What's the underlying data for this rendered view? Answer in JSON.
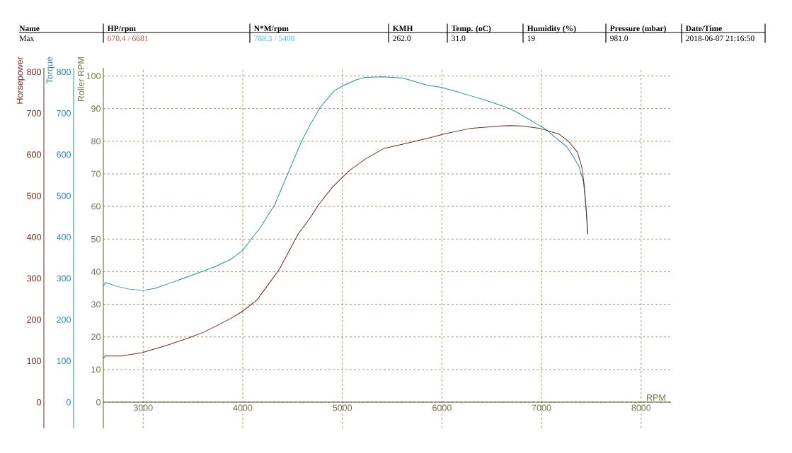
{
  "chart_data": {
    "type": "line",
    "annotations": [
      "Name",
      "HP/rpm",
      "N*M/rpm",
      "KMH",
      "Temp. (oC)",
      "Humidity (%)",
      "Pressure (mbar)",
      "Date/Time",
      "Max",
      "670.4 / 6681",
      "788.3 / 5408",
      "262.0",
      "31.0",
      "19",
      "981.0",
      "2018-06-07 21:16:50"
    ],
    "xlabel": "RPM",
    "ylabel": "Roller RPM",
    "y2label": "Horsepower",
    "y3label": "Torque",
    "xlim": [
      2600,
      8300
    ],
    "xticks": [
      {
        "value": 2800,
        "label": null
      },
      3000,
      {
        "value": 3200,
        "label": null
      },
      {
        "value": 3400,
        "label": null
      },
      {
        "value": 3600,
        "label": null
      },
      {
        "value": 3800,
        "label": null
      },
      4000,
      {
        "value": 4200,
        "label": null
      },
      {
        "value": 4400,
        "label": null
      },
      {
        "value": 4600,
        "label": null
      },
      {
        "value": 4800,
        "label": null
      },
      5000,
      {
        "value": 5200,
        "label": null
      },
      {
        "value": 5400,
        "label": null
      },
      {
        "value": 5600,
        "label": null
      },
      {
        "value": 5800,
        "label": null
      },
      6000,
      {
        "value": 6200,
        "label": null
      },
      {
        "value": 6400,
        "label": null
      },
      {
        "value": 6600,
        "label": null
      },
      {
        "value": 6800,
        "label": null
      },
      7000,
      {
        "value": 7200,
        "label": null
      },
      {
        "value": 7400,
        "label": null
      },
      {
        "value": 7600,
        "label": null
      },
      {
        "value": 7800,
        "label": null
      },
      8000,
      {
        "value": 8200,
        "label": null
      }
    ],
    "ylim": [
      -8,
      102.5
    ],
    "yticks": [
      0,
      10,
      20,
      30,
      40,
      50,
      60,
      70,
      80,
      90,
      100
    ],
    "y2lim": [
      -63,
      810
    ],
    "y2ticks": [
      0,
      100,
      200,
      300,
      400,
      500,
      600,
      700,
      800
    ],
    "y3lim": [
      -63,
      810
    ],
    "y3ticks": [
      0,
      100,
      200,
      300,
      400,
      500,
      600,
      700,
      800
    ],
    "grid": true,
    "series": [
      {
        "color": "#6e2a1e",
        "axis": "y2",
        "x": [
          2600,
          2620,
          2780,
          2990,
          3240,
          3460,
          3610,
          3760,
          3880,
          3990,
          4140,
          4250,
          4370,
          4480,
          4560,
          4670,
          4760,
          4900,
          5070,
          5230,
          5420,
          5570,
          5780,
          5920,
          6020,
          6280,
          6590,
          6681,
          6800,
          6990,
          7180,
          7270,
          7360,
          7405,
          7430,
          7445,
          7457,
          7464
        ],
        "values": [
          107,
          112,
          112,
          120,
          138,
          156,
          170,
          188,
          203,
          219,
          247,
          283,
          323,
          373,
          409,
          444,
          478,
          521,
          561,
          589,
          615,
          623,
          635,
          643,
          650,
          663,
          669,
          670,
          669,
          663,
          649,
          632,
          606,
          569,
          524,
          478,
          432,
          407
        ]
      },
      {
        "color": "#2a8aa8",
        "axis": "y3",
        "x": [
          2600,
          2620,
          2750,
          2860,
          3000,
          3120,
          3310,
          3570,
          3720,
          3880,
          4000,
          4130,
          4170,
          4320,
          4460,
          4590,
          4670,
          4780,
          4920,
          5000,
          5140,
          5230,
          5408,
          5500,
          5610,
          5850,
          5990,
          6140,
          6280,
          6470,
          6630,
          6750,
          6870,
          6990,
          7060,
          7130,
          7250,
          7320,
          7380,
          7420,
          7440,
          7455,
          7464
        ],
        "values": [
          281,
          290,
          280,
          274,
          271,
          276,
          292,
          315,
          328,
          346,
          368,
          409,
          421,
          478,
          558,
          632,
          669,
          715,
          755,
          766,
          781,
          787,
          788,
          787,
          785,
          768,
          763,
          753,
          743,
          729,
          716,
          703,
          686,
          669,
          658,
          643,
          620,
          595,
          569,
          535,
          489,
          449,
          407
        ]
      }
    ]
  }
}
